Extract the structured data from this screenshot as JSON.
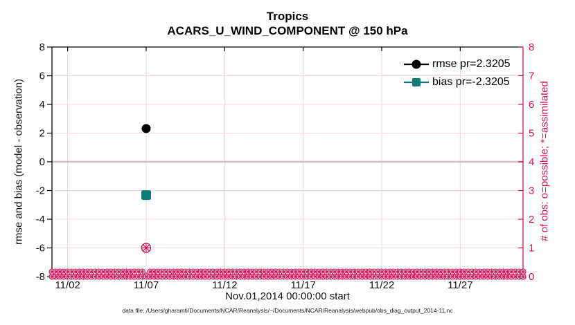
{
  "footer": "data file: /Users/gharamti/Documents/NCAR/Reanalysis/~/Documents/NCAR/Reanalysis/webpub/obs_diag_output_2014-11.nc",
  "chart_data": {
    "type": "line",
    "title": "Tropics",
    "subtitle": "ACARS_U_WIND_COMPONENT @ 150 hPa",
    "xlabel": "Nov.01,2014 00:00:00 start",
    "ylabel_left": "rmse and bias (model - observation)",
    "ylabel_right": "# of obs: o=possible; *=assimilated",
    "grid": true,
    "legend_position": "top-right-inside",
    "axis_color_left": "#000000",
    "axis_color_right": "#d2135a",
    "zero_line_color": "#b3adb0",
    "grid_color_horizontal": "#f4d8e2",
    "grid_color_vertical": "#dcdcdc",
    "x_range_days": 30,
    "x_start": "Nov.01,2014 00:00:00",
    "x_tick_labels": [
      "11/02",
      "11/07",
      "11/12",
      "11/17",
      "11/22",
      "11/27"
    ],
    "x_tick_days": [
      1,
      6,
      11,
      16,
      21,
      26
    ],
    "ylim_left": [
      -8,
      8
    ],
    "yticks_left": [
      8,
      6,
      4,
      2,
      0,
      -2,
      -4,
      -6,
      -8
    ],
    "ylim_right": [
      0,
      8
    ],
    "yticks_right": [
      8,
      7,
      6,
      5,
      4,
      3,
      2,
      1,
      0
    ],
    "series": [
      {
        "name": "rmse pr=2.3205",
        "color": "#000000",
        "marker": "circle",
        "axis": "left",
        "points": [
          {
            "day": 6,
            "label": "11/07",
            "y": 2.3205
          }
        ]
      },
      {
        "name": "bias pr=-2.3205",
        "color": "#0f7d77",
        "marker": "square",
        "axis": "left",
        "points": [
          {
            "day": 6,
            "label": "11/07",
            "y": -2.3205
          }
        ]
      }
    ],
    "obs_counts": {
      "name": "# of obs: o=possible; *=assimilated",
      "color": "#d2135a",
      "axis": "right",
      "marker_possible": "o",
      "marker_assimilated": "*",
      "interval_days": 0.25,
      "default_count": 0,
      "nonzero": [
        {
          "day": 6,
          "label": "11/07",
          "possible": 1,
          "assimilated": 1
        }
      ]
    }
  }
}
